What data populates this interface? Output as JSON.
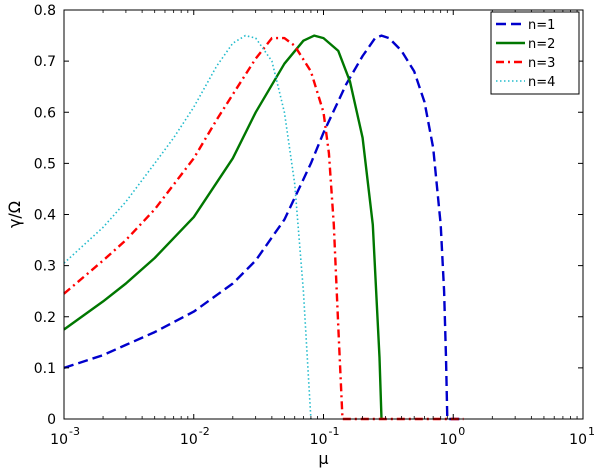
{
  "chart_data": {
    "type": "line",
    "xscale": "log",
    "xlim": [
      0.001,
      10
    ],
    "ylim": [
      0,
      0.8
    ],
    "xlabel": "μ",
    "ylabel": "γ/Ω",
    "title": "",
    "grid": false,
    "legend_position": "top-right",
    "xticks": [
      0.001,
      0.01,
      0.1,
      1,
      10
    ],
    "xtick_labels": [
      {
        "base": "10",
        "exp": "-3"
      },
      {
        "base": "10",
        "exp": "-2"
      },
      {
        "base": "10",
        "exp": "-1"
      },
      {
        "base": "10",
        "exp": "0"
      },
      {
        "base": "10",
        "exp": "1"
      }
    ],
    "yticks": [
      0,
      0.1,
      0.2,
      0.3,
      0.4,
      0.5,
      0.6,
      0.7,
      0.8
    ],
    "ytick_labels": [
      "0",
      "0.1",
      "0.2",
      "0.3",
      "0.4",
      "0.5",
      "0.6",
      "0.7",
      "0.8"
    ],
    "series": [
      {
        "name": "n=1",
        "color": "#0000cc",
        "style": "dashed",
        "x": [
          0.001,
          0.002,
          0.003,
          0.005,
          0.01,
          0.02,
          0.03,
          0.05,
          0.08,
          0.1,
          0.15,
          0.2,
          0.25,
          0.28,
          0.32,
          0.4,
          0.5,
          0.6,
          0.7,
          0.8,
          0.85,
          0.88,
          0.9,
          1.0,
          1.2
        ],
        "y": [
          0.1,
          0.125,
          0.145,
          0.17,
          0.21,
          0.265,
          0.31,
          0.39,
          0.5,
          0.56,
          0.655,
          0.71,
          0.745,
          0.75,
          0.745,
          0.72,
          0.68,
          0.62,
          0.53,
          0.38,
          0.25,
          0.12,
          0.0,
          0.0,
          0.0
        ]
      },
      {
        "name": "n=2",
        "color": "#007700",
        "style": "solid",
        "x": [
          0.001,
          0.002,
          0.003,
          0.005,
          0.01,
          0.02,
          0.03,
          0.05,
          0.07,
          0.085,
          0.1,
          0.13,
          0.16,
          0.2,
          0.24,
          0.27,
          0.28
        ],
        "y": [
          0.175,
          0.23,
          0.265,
          0.315,
          0.395,
          0.51,
          0.6,
          0.695,
          0.74,
          0.75,
          0.745,
          0.72,
          0.66,
          0.55,
          0.38,
          0.12,
          0.0
        ]
      },
      {
        "name": "n=3",
        "color": "#ff0000",
        "style": "dashdot",
        "x": [
          0.001,
          0.002,
          0.003,
          0.005,
          0.01,
          0.015,
          0.02,
          0.03,
          0.04,
          0.05,
          0.06,
          0.08,
          0.1,
          0.11,
          0.12,
          0.13,
          0.14,
          0.3,
          1.2
        ],
        "y": [
          0.245,
          0.31,
          0.35,
          0.41,
          0.51,
          0.585,
          0.635,
          0.705,
          0.745,
          0.745,
          0.73,
          0.68,
          0.6,
          0.52,
          0.38,
          0.18,
          0.0,
          0.0,
          0.0
        ]
      },
      {
        "name": "n=4",
        "color": "#22bbcc",
        "style": "dotted",
        "x": [
          0.001,
          0.002,
          0.003,
          0.005,
          0.007,
          0.01,
          0.015,
          0.02,
          0.025,
          0.03,
          0.04,
          0.05,
          0.06,
          0.07,
          0.075,
          0.08
        ],
        "y": [
          0.305,
          0.375,
          0.425,
          0.5,
          0.55,
          0.61,
          0.69,
          0.735,
          0.75,
          0.745,
          0.7,
          0.6,
          0.46,
          0.25,
          0.12,
          0.0
        ]
      }
    ]
  }
}
